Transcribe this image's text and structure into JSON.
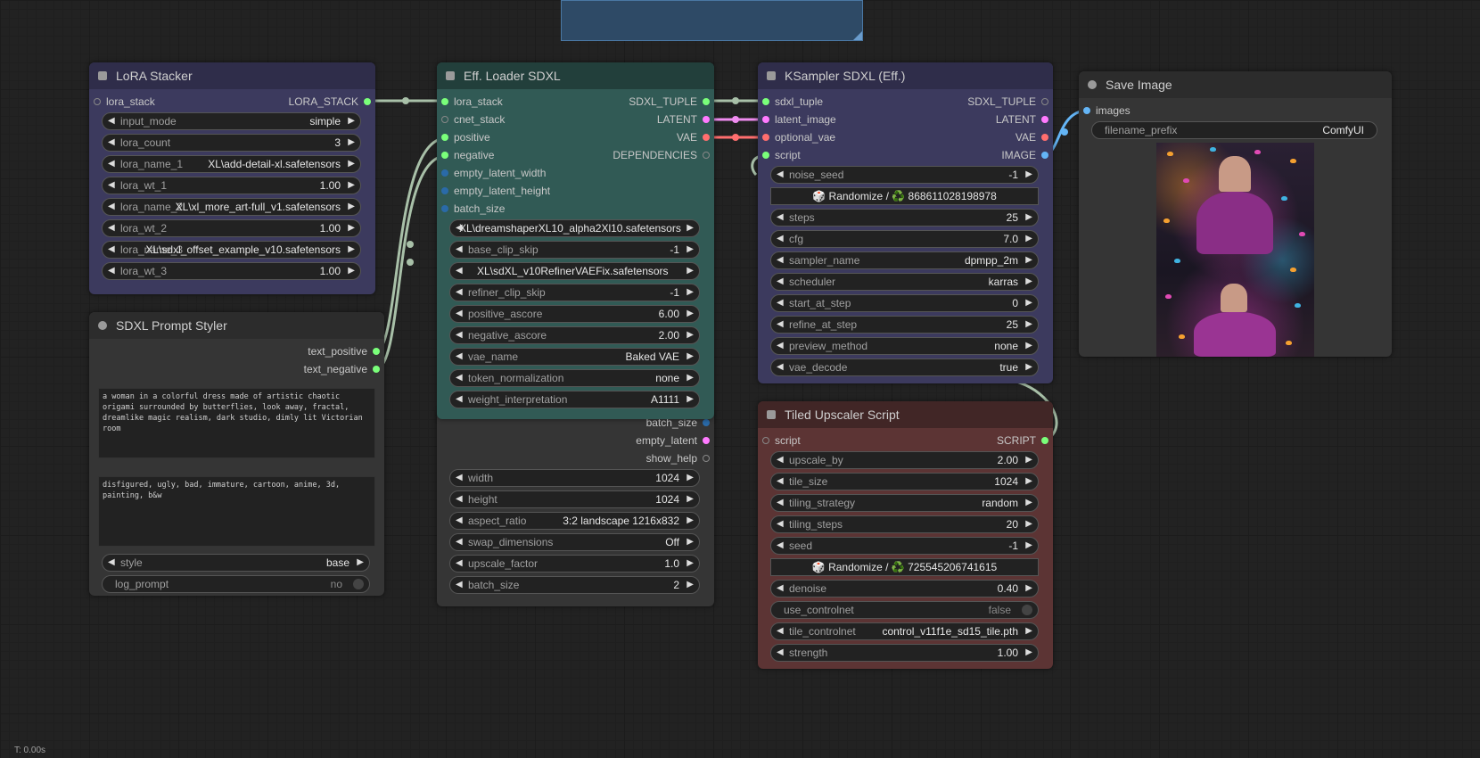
{
  "colors": {
    "canvas": "#222222",
    "lora_stacker_bg": "#3c3a5e",
    "lora_stacker_title": "#2f2d4a",
    "eff_loader_bg": "#315a55",
    "eff_loader_title": "#223f3b",
    "ksampler_bg": "#3c3a5e",
    "ksampler_title": "#2f2d4a",
    "upscaler_bg": "#5c3434",
    "upscaler_title": "#412626",
    "neutral_bg": "#353535",
    "neutral_title": "#2c2c2c",
    "wire_green": "#a8c0a8",
    "wire_pink": "#f08cf0",
    "wire_red": "#ff6e6e",
    "wire_blue": "#64b5f6",
    "socket_green": "#7aff7a",
    "socket_pink": "#ff7aff",
    "socket_red": "#ff6e6e",
    "socket_blue": "#64b5f6",
    "socket_dark_blue": "#2a6aa8",
    "socket_grey": "#9a9a9a"
  },
  "lora_stacker": {
    "title": "LoRA Stacker",
    "input": "lora_stack",
    "output": "LORA_STACK",
    "widgets": [
      {
        "label": "input_mode",
        "value": "simple"
      },
      {
        "label": "lora_count",
        "value": "3"
      },
      {
        "label": "lora_name_1",
        "value": "XL\\add-detail-xl.safetensors"
      },
      {
        "label": "lora_wt_1",
        "value": "1.00"
      },
      {
        "label": "lora_name_2",
        "value": "XL\\xl_more_art-full_v1.safetensors"
      },
      {
        "label": "lora_wt_2",
        "value": "1.00"
      },
      {
        "label": "lora_name_3",
        "value": "XL\\sdxl_offset_example_v10.safetensors"
      },
      {
        "label": "lora_wt_3",
        "value": "1.00"
      }
    ]
  },
  "prompt_styler": {
    "title": "SDXL Prompt Styler",
    "outputs": [
      "text_positive",
      "text_negative"
    ],
    "positive_text": "a woman in a colorful dress made of artistic chaotic origami surrounded by butterflies, look away, fractal, dreamlike magic realism, dark studio, dimly lit Victorian room",
    "negative_text": "disfigured, ugly, bad, immature, cartoon, anime, 3d, painting, b&w",
    "style": {
      "label": "style",
      "value": "base"
    },
    "log_prompt": {
      "label": "log_prompt",
      "value": "no"
    }
  },
  "eff_loader": {
    "title": "Eff. Loader SDXL",
    "inputs": [
      "lora_stack",
      "cnet_stack",
      "positive",
      "negative",
      "empty_latent_width",
      "empty_latent_height",
      "batch_size"
    ],
    "outputs": [
      "SDXL_TUPLE",
      "LATENT",
      "VAE",
      "DEPENDENCIES"
    ],
    "widgets": [
      {
        "label": "base_ckpt_name",
        "value": "XL\\dreamshaperXL10_alpha2Xl10.safetensors"
      },
      {
        "label": "base_clip_skip",
        "value": "-1"
      },
      {
        "label": "refiner_ckpt_name",
        "value": "XL\\sdXL_v10RefinerVAEFix.safetensors"
      },
      {
        "label": "refiner_clip_skip",
        "value": "-1"
      },
      {
        "label": "positive_ascore",
        "value": "6.00"
      },
      {
        "label": "negative_ascore",
        "value": "2.00"
      },
      {
        "label": "vae_name",
        "value": "Baked VAE"
      },
      {
        "label": "token_normalization",
        "value": "none"
      },
      {
        "label": "weight_interpretation",
        "value": "A1111"
      }
    ]
  },
  "empty_latent": {
    "inputs": [
      "batch_size"
    ],
    "outputs": [
      "empty_latent",
      "show_help"
    ],
    "widgets": [
      {
        "label": "width",
        "value": "1024"
      },
      {
        "label": "height",
        "value": "1024"
      },
      {
        "label": "aspect_ratio",
        "value": "3:2 landscape 1216x832"
      },
      {
        "label": "swap_dimensions",
        "value": "Off"
      },
      {
        "label": "upscale_factor",
        "value": "1.0"
      },
      {
        "label": "batch_size",
        "value": "2"
      }
    ]
  },
  "ksampler": {
    "title": "KSampler SDXL (Eff.)",
    "inputs": [
      "sdxl_tuple",
      "latent_image",
      "optional_vae",
      "script"
    ],
    "outputs": [
      "SDXL_TUPLE",
      "LATENT",
      "VAE",
      "IMAGE"
    ],
    "noise_seed": {
      "label": "noise_seed",
      "value": "-1"
    },
    "randomize": {
      "label": "Randomize /",
      "value": "868611028198978"
    },
    "dice_icon": "🎲",
    "recycle_icon": "♻️",
    "widgets": [
      {
        "label": "steps",
        "value": "25"
      },
      {
        "label": "cfg",
        "value": "7.0"
      },
      {
        "label": "sampler_name",
        "value": "dpmpp_2m"
      },
      {
        "label": "scheduler",
        "value": "karras"
      },
      {
        "label": "start_at_step",
        "value": "0"
      },
      {
        "label": "refine_at_step",
        "value": "25"
      },
      {
        "label": "preview_method",
        "value": "none"
      },
      {
        "label": "vae_decode",
        "value": "true"
      }
    ]
  },
  "save_image": {
    "title": "Save Image",
    "input": "images",
    "filename_prefix": {
      "label": "filename_prefix",
      "value": "ComfyUI"
    }
  },
  "tiled_upscaler": {
    "title": "Tiled Upscaler Script",
    "input": "script",
    "output": "SCRIPT",
    "widgets_a": [
      {
        "label": "upscale_by",
        "value": "2.00"
      },
      {
        "label": "tile_size",
        "value": "1024"
      },
      {
        "label": "tiling_strategy",
        "value": "random"
      },
      {
        "label": "tiling_steps",
        "value": "20"
      },
      {
        "label": "seed",
        "value": "-1"
      }
    ],
    "randomize": {
      "label": "Randomize /",
      "value": "725545206741615"
    },
    "denoise": {
      "label": "denoise",
      "value": "0.40"
    },
    "use_controlnet": {
      "label": "use_controlnet",
      "value": "false"
    },
    "tile_controlnet": {
      "label": "tile_controlnet",
      "value": "control_v11f1e_sd15_tile.pth"
    },
    "strength": {
      "label": "strength",
      "value": "1.00"
    }
  },
  "status": {
    "time": "T: 0.00s"
  }
}
